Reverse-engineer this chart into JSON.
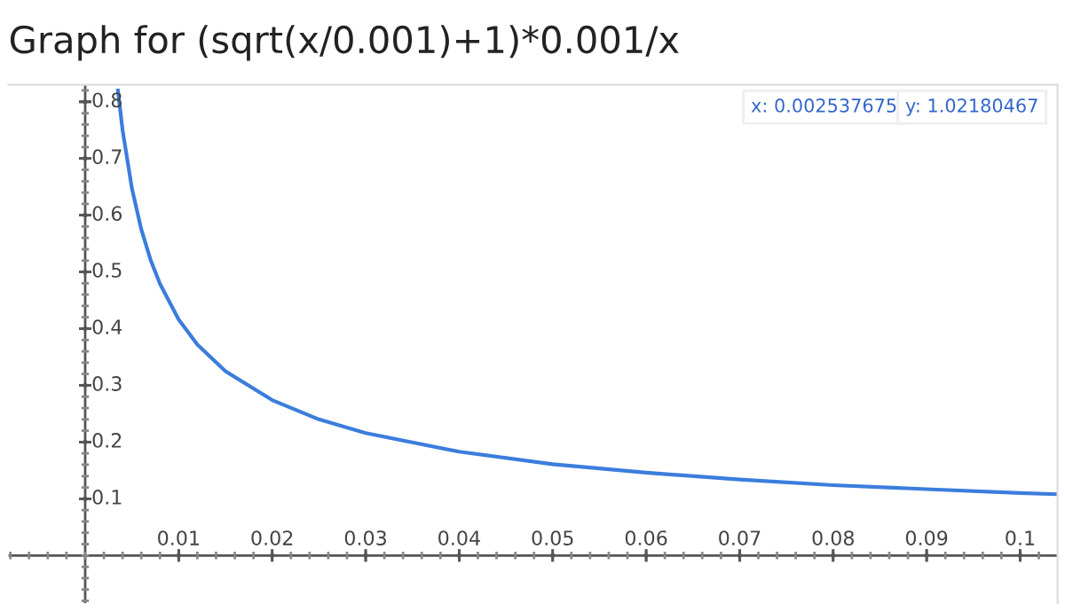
{
  "chart_data": {
    "type": "line",
    "title": "Graph for (sqrt(x/0.001)+1)*0.001/x",
    "annotations": [
      "x: 0.002537675",
      "y: 1.02180467"
    ],
    "series": [
      {
        "color": "#3b7ddd",
        "x": [
          0.0035,
          0.004,
          0.005,
          0.006,
          0.007,
          0.008,
          0.01,
          0.012,
          0.015,
          0.02,
          0.025,
          0.03,
          0.04,
          0.05,
          0.06,
          0.07,
          0.08,
          0.09,
          0.1,
          0.104
        ],
        "values": [
          0.82,
          0.75,
          0.647,
          0.575,
          0.521,
          0.479,
          0.416,
          0.372,
          0.325,
          0.274,
          0.24,
          0.216,
          0.183,
          0.161,
          0.146,
          0.134,
          0.124,
          0.117,
          0.11,
          0.108
        ]
      }
    ],
    "xlim": [
      -0.0082,
      0.104
    ],
    "ylim": [
      -0.084,
      0.83
    ],
    "xticks": [
      0.01,
      0.02,
      0.03,
      0.04,
      0.05,
      0.06,
      0.07,
      0.08,
      0.09,
      0.1
    ],
    "yticks": [
      0.1,
      0.2,
      0.3,
      0.4,
      0.5,
      0.6,
      0.7,
      0.8
    ],
    "grid": false,
    "legend": false,
    "marker": "none",
    "line_style": "solid"
  }
}
